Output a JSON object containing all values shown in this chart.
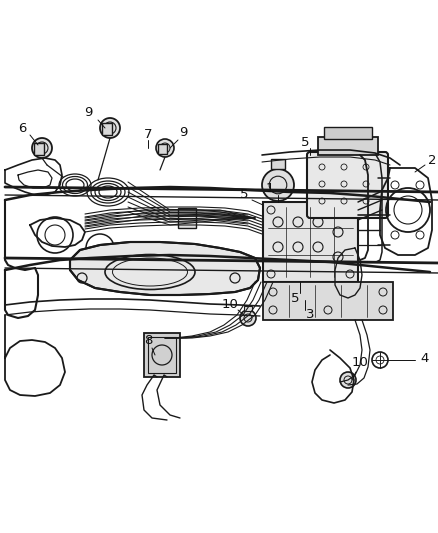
{
  "background_color": "#ffffff",
  "line_color": "#1a1a1a",
  "figure_width": 4.38,
  "figure_height": 5.33,
  "dpi": 100,
  "image_bounds": {
    "xmin": 0,
    "xmax": 438,
    "ymin": 0,
    "ymax": 533
  }
}
